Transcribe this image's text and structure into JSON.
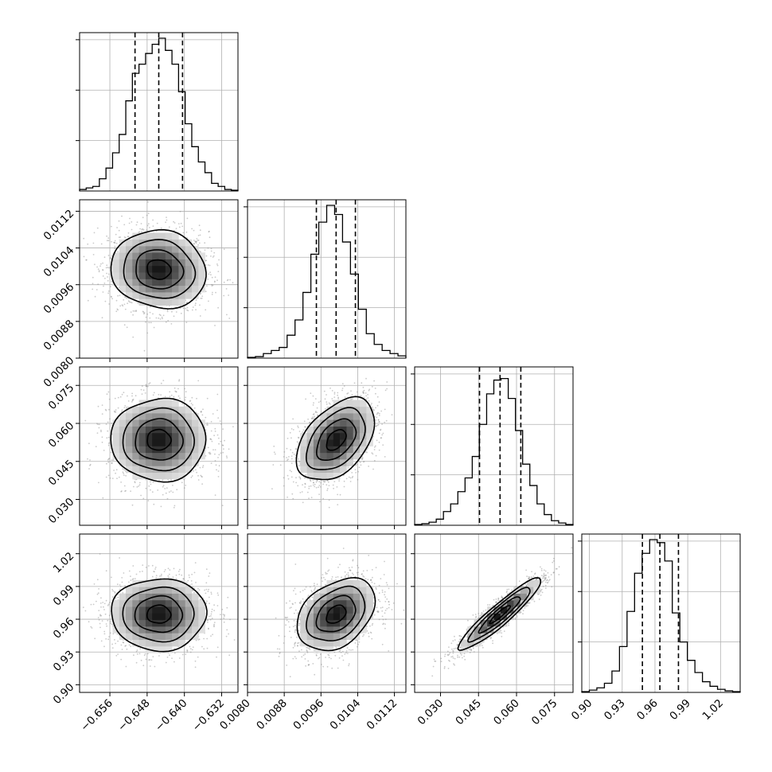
{
  "chart_data": {
    "type": "corner",
    "parameters": [
      {
        "range": [
          -0.6625,
          -0.6285
        ],
        "median": -0.6455,
        "q16": -0.6506,
        "q84": -0.6404,
        "ticks": [
          -0.656,
          -0.648,
          -0.64,
          -0.632
        ],
        "tick_labels": [
          "−0.656",
          "−0.648",
          "−0.640",
          "−0.632"
        ]
      },
      {
        "range": [
          0.008,
          0.01145
        ],
        "median": 0.00993,
        "q16": 0.0095,
        "q84": 0.01035,
        "ticks": [
          0.008,
          0.0088,
          0.0096,
          0.0104,
          0.0112
        ],
        "tick_labels": [
          "0.0080",
          "0.0088",
          "0.0096",
          "0.0104",
          "0.0112"
        ]
      },
      {
        "range": [
          0.0198,
          0.0823
        ],
        "median": 0.0535,
        "q16": 0.0454,
        "q84": 0.0617,
        "ticks": [
          0.03,
          0.045,
          0.06,
          0.075
        ],
        "tick_labels": [
          "0.030",
          "0.045",
          "0.060",
          "0.075"
        ]
      },
      {
        "range": [
          0.893,
          1.038
        ],
        "median": 0.9645,
        "q16": 0.9485,
        "q84": 0.9815,
        "ticks": [
          0.9,
          0.93,
          0.96,
          0.99,
          1.02
        ],
        "tick_labels": [
          "0.90",
          "0.93",
          "0.96",
          "0.99",
          "1.02"
        ]
      }
    ],
    "histograms": [
      [
        0.01,
        0.02,
        0.03,
        0.08,
        0.15,
        0.25,
        0.37,
        0.59,
        0.77,
        0.83,
        0.9,
        0.96,
        1.0,
        0.92,
        0.83,
        0.65,
        0.44,
        0.29,
        0.19,
        0.12,
        0.05,
        0.03,
        0.01,
        0.005
      ],
      [
        0.005,
        0.01,
        0.03,
        0.05,
        0.07,
        0.15,
        0.25,
        0.43,
        0.68,
        0.89,
        1.0,
        0.94,
        0.76,
        0.55,
        0.32,
        0.16,
        0.09,
        0.05,
        0.03,
        0.015
      ],
      [
        0.005,
        0.01,
        0.02,
        0.04,
        0.09,
        0.14,
        0.22,
        0.31,
        0.45,
        0.66,
        0.86,
        0.95,
        0.96,
        0.83,
        0.62,
        0.4,
        0.26,
        0.14,
        0.07,
        0.03,
        0.015,
        0.005
      ],
      [
        0.005,
        0.015,
        0.03,
        0.06,
        0.14,
        0.3,
        0.53,
        0.78,
        0.91,
        1.0,
        0.98,
        0.86,
        0.52,
        0.33,
        0.21,
        0.13,
        0.07,
        0.04,
        0.02,
        0.01,
        0.005
      ]
    ],
    "correlations": {
      "1-0": -0.08,
      "2-0": 0.0,
      "2-1": 0.45,
      "3-0": 0.0,
      "3-1": 0.35,
      "3-2": 0.93
    },
    "contour_sigma_levels": [
      0.5,
      1.0,
      1.5,
      2.0
    ],
    "scatter_color": "#8a8a8a",
    "line_color": "#000000"
  }
}
